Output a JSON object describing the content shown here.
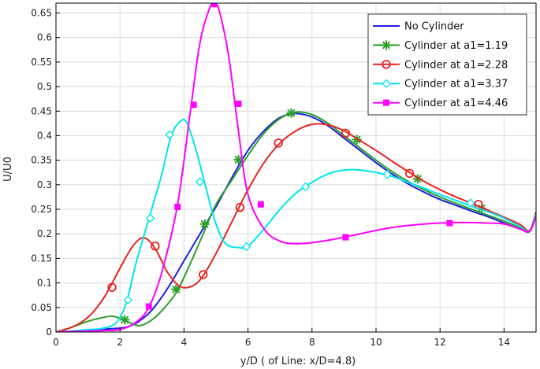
{
  "chart_data": {
    "type": "line",
    "xlabel": "y/D ( of Line: x/D=4.8)",
    "ylabel": "U/U0",
    "xlim": [
      0,
      15
    ],
    "ylim": [
      0,
      0.67
    ],
    "xticks": [
      0,
      2,
      4,
      6,
      8,
      10,
      12,
      14
    ],
    "yticks": [
      0,
      0.05,
      0.1,
      0.15,
      0.2,
      0.25,
      0.3,
      0.35,
      0.4,
      0.45,
      0.5,
      0.55,
      0.6,
      0.65
    ],
    "ytick_labels": [
      "0",
      "0.05",
      "0.1",
      "0.15",
      "0.2",
      "0.25",
      "0.3",
      "0.35",
      "0.4",
      "0.45",
      "0.5",
      "0.55",
      "0.6",
      "0.65"
    ],
    "grid": true,
    "legend_position": "top-right",
    "series": [
      {
        "name": "No Cylinder",
        "color": "#1f1fe0",
        "marker": "none",
        "x": [
          0,
          0.5,
          1,
          1.5,
          2,
          2.3,
          2.6,
          3,
          3.5,
          4,
          4.5,
          5,
          5.5,
          6,
          6.5,
          7,
          7.5,
          8,
          8.5,
          9,
          9.5,
          10,
          10.5,
          11,
          11.5,
          12,
          12.5,
          13,
          13.5,
          14,
          14.5,
          14.8,
          15
        ],
        "y": [
          0,
          0.002,
          0.004,
          0.006,
          0.008,
          0.012,
          0.022,
          0.045,
          0.09,
          0.145,
          0.2,
          0.255,
          0.315,
          0.37,
          0.41,
          0.437,
          0.445,
          0.438,
          0.42,
          0.395,
          0.37,
          0.345,
          0.322,
          0.302,
          0.285,
          0.27,
          0.258,
          0.246,
          0.235,
          0.222,
          0.21,
          0.205,
          0.24
        ],
        "markers": []
      },
      {
        "name": "Cylinder at a1=1.19",
        "color": "#2ca02c",
        "marker": "asterisk",
        "x": [
          0,
          0.5,
          1,
          1.5,
          1.8,
          2.2,
          2.6,
          3,
          3.4,
          3.8,
          4.2,
          4.6,
          5,
          5.5,
          6,
          6.5,
          7,
          7.5,
          8,
          8.5,
          9,
          9.5,
          10,
          10.5,
          11,
          11.5,
          12,
          12.5,
          13,
          13.5,
          14,
          14.5,
          14.8,
          15
        ],
        "y": [
          0,
          0.01,
          0.022,
          0.03,
          0.032,
          0.022,
          0.013,
          0.025,
          0.05,
          0.085,
          0.14,
          0.2,
          0.26,
          0.31,
          0.36,
          0.405,
          0.435,
          0.448,
          0.443,
          0.425,
          0.4,
          0.375,
          0.35,
          0.327,
          0.307,
          0.29,
          0.275,
          0.262,
          0.25,
          0.238,
          0.226,
          0.212,
          0.205,
          0.24
        ],
        "markers": [
          [
            2.15,
            0.025
          ],
          [
            3.75,
            0.087
          ],
          [
            4.65,
            0.22
          ],
          [
            5.7,
            0.351
          ],
          [
            7.35,
            0.446
          ],
          [
            9.4,
            0.392
          ],
          [
            11.3,
            0.312
          ],
          [
            13.3,
            0.252
          ]
        ]
      },
      {
        "name": "Cylinder at a1=2.28",
        "color": "#e8231f",
        "marker": "circle",
        "x": [
          0,
          0.5,
          1,
          1.5,
          2,
          2.4,
          2.75,
          3.1,
          3.5,
          3.9,
          4.3,
          4.6,
          5,
          5.5,
          6,
          6.5,
          7,
          7.5,
          8,
          8.5,
          9,
          9.5,
          10,
          10.5,
          11,
          11.5,
          12,
          12.5,
          13,
          13.5,
          14,
          14.5,
          14.8,
          15
        ],
        "y": [
          0,
          0.01,
          0.03,
          0.07,
          0.13,
          0.175,
          0.192,
          0.17,
          0.12,
          0.092,
          0.095,
          0.115,
          0.16,
          0.225,
          0.29,
          0.345,
          0.385,
          0.41,
          0.423,
          0.422,
          0.41,
          0.39,
          0.37,
          0.348,
          0.327,
          0.307,
          0.29,
          0.275,
          0.262,
          0.248,
          0.234,
          0.219,
          0.207,
          0.245
        ],
        "markers": [
          [
            1.75,
            0.091
          ],
          [
            3.1,
            0.175
          ],
          [
            4.6,
            0.117
          ],
          [
            5.75,
            0.254
          ],
          [
            6.95,
            0.385
          ],
          [
            9.05,
            0.405
          ],
          [
            11.05,
            0.323
          ],
          [
            13.2,
            0.26
          ]
        ]
      },
      {
        "name": "Cylinder at a1=3.37",
        "color": "#00e5ee",
        "marker": "diamond",
        "x": [
          0,
          0.5,
          1,
          1.5,
          1.9,
          2.2,
          2.5,
          2.9,
          3.3,
          3.6,
          3.9,
          4.1,
          4.4,
          4.7,
          5,
          5.3,
          5.7,
          6,
          6.5,
          7,
          7.5,
          8,
          8.5,
          9,
          9.5,
          10,
          10.5,
          11,
          11.5,
          12,
          12.5,
          13,
          13.5,
          14,
          14.5,
          14.8,
          15
        ],
        "y": [
          0,
          0.002,
          0.005,
          0.008,
          0.02,
          0.06,
          0.14,
          0.23,
          0.32,
          0.4,
          0.43,
          0.425,
          0.365,
          0.29,
          0.22,
          0.18,
          0.172,
          0.175,
          0.21,
          0.25,
          0.283,
          0.305,
          0.322,
          0.33,
          0.33,
          0.325,
          0.317,
          0.305,
          0.293,
          0.28,
          0.268,
          0.256,
          0.245,
          0.232,
          0.215,
          0.205,
          0.24
        ],
        "markers": [
          [
            2.25,
            0.065
          ],
          [
            2.95,
            0.232
          ],
          [
            3.55,
            0.402
          ],
          [
            4.5,
            0.306
          ],
          [
            5.95,
            0.174
          ],
          [
            7.8,
            0.296
          ],
          [
            10.35,
            0.321
          ],
          [
            12.95,
            0.263
          ]
        ]
      },
      {
        "name": "Cylinder at a1=4.46",
        "color": "#ff00ff",
        "marker": "square",
        "x": [
          0,
          0.5,
          1,
          1.5,
          2,
          2.5,
          2.9,
          3.3,
          3.8,
          4.2,
          4.5,
          4.8,
          4.95,
          5.1,
          5.4,
          5.7,
          6,
          6.5,
          7,
          7.5,
          8,
          8.5,
          9,
          9.5,
          10,
          10.5,
          11,
          11.5,
          12,
          12.5,
          13,
          13.5,
          14,
          14.5,
          14.8,
          15
        ],
        "y": [
          0,
          0.001,
          0.002,
          0.003,
          0.005,
          0.02,
          0.05,
          0.12,
          0.26,
          0.45,
          0.59,
          0.66,
          0.668,
          0.655,
          0.56,
          0.41,
          0.28,
          0.21,
          0.185,
          0.18,
          0.182,
          0.187,
          0.193,
          0.2,
          0.207,
          0.213,
          0.217,
          0.22,
          0.222,
          0.223,
          0.223,
          0.222,
          0.22,
          0.21,
          0.205,
          0.235
        ],
        "markers": [
          [
            2.9,
            0.052
          ],
          [
            3.8,
            0.255
          ],
          [
            4.3,
            0.463
          ],
          [
            4.95,
            0.668
          ],
          [
            5.7,
            0.465
          ],
          [
            6.4,
            0.26
          ],
          [
            9.05,
            0.193
          ],
          [
            12.3,
            0.222
          ]
        ]
      }
    ]
  }
}
